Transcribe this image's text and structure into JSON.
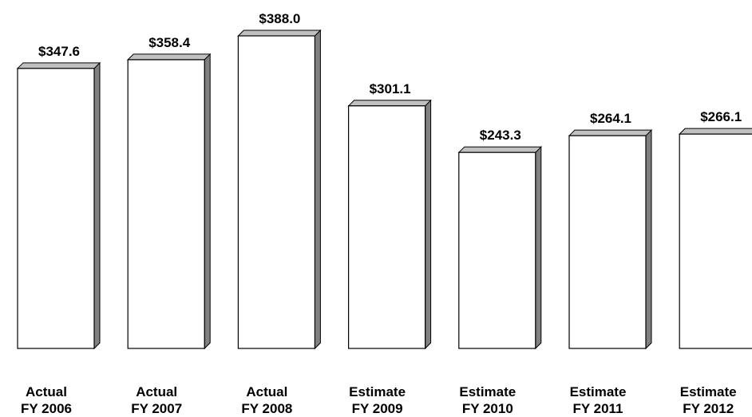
{
  "chart_data": {
    "type": "bar",
    "style": "3d-column",
    "categories": [
      [
        "Actual",
        "FY 2006"
      ],
      [
        "Actual",
        "FY 2007"
      ],
      [
        "Actual",
        "FY 2008"
      ],
      [
        "Estimate",
        "FY 2009"
      ],
      [
        "Estimate",
        "FY 2010"
      ],
      [
        "Estimate",
        "FY 2011"
      ],
      [
        "Estimate",
        "FY 2012"
      ]
    ],
    "values": [
      347.6,
      358.4,
      388.0,
      301.1,
      243.3,
      264.1,
      266.1
    ],
    "value_labels": [
      "$347.6",
      "$358.4",
      "$388.0",
      "$301.1",
      "$243.3",
      "$264.1",
      "$266.1"
    ],
    "ylim": [
      0,
      388.0
    ],
    "grid": false,
    "legend": "none",
    "colors": {
      "bar_front": "#ffffff",
      "bar_side": "#808080",
      "bar_top": "#c0c0c0",
      "outline": "#000000"
    }
  }
}
